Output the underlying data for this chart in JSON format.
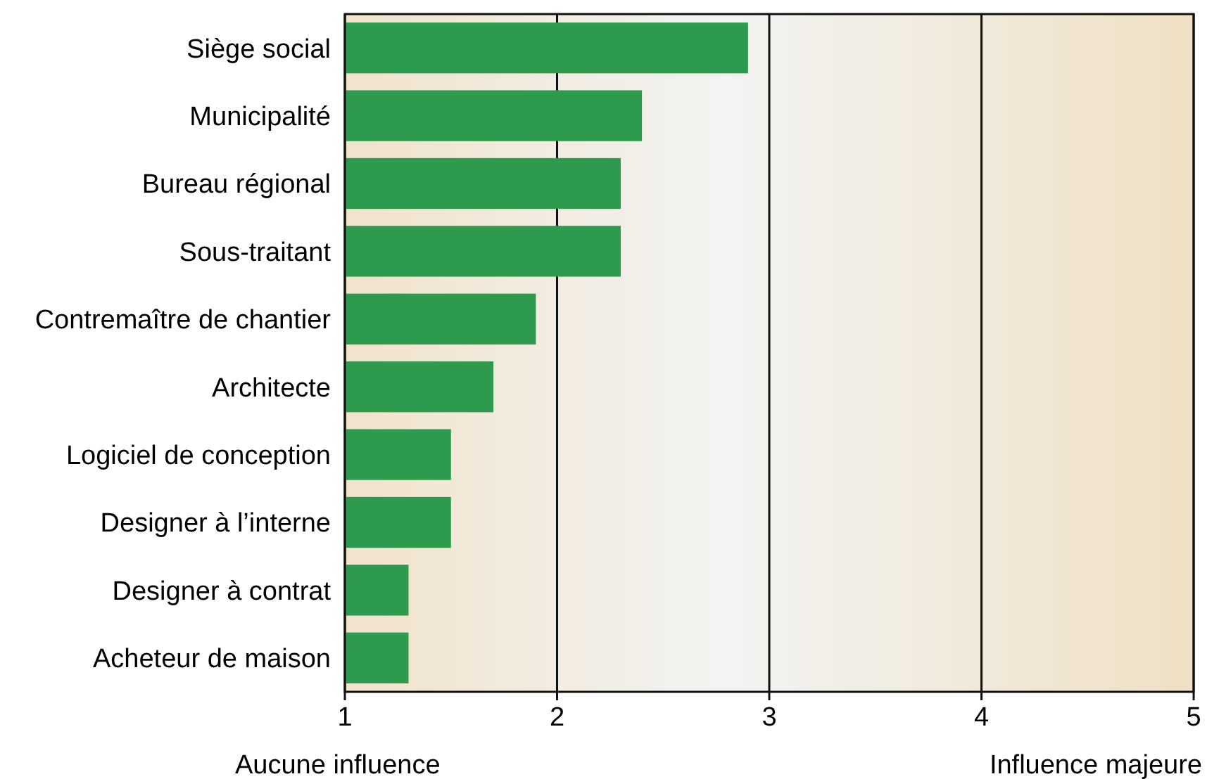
{
  "chart_data": {
    "type": "bar",
    "orientation": "horizontal",
    "categories": [
      "Siège social",
      "Municipalité",
      "Bureau régional",
      "Sous-traitant",
      "Contremaître de chantier",
      "Architecte",
      "Logiciel de conception",
      "Designer à l’interne",
      "Designer à contrat",
      "Acheteur de maison"
    ],
    "values": [
      2.9,
      2.4,
      2.3,
      2.3,
      1.9,
      1.7,
      1.5,
      1.5,
      1.3,
      1.3
    ],
    "color": "#2e9a4e",
    "xlim": [
      1,
      5
    ],
    "xticks": [
      1,
      2,
      3,
      4,
      5
    ],
    "grid": "x",
    "annotations": [
      "Aucune influence",
      "Influence majeure"
    ]
  }
}
